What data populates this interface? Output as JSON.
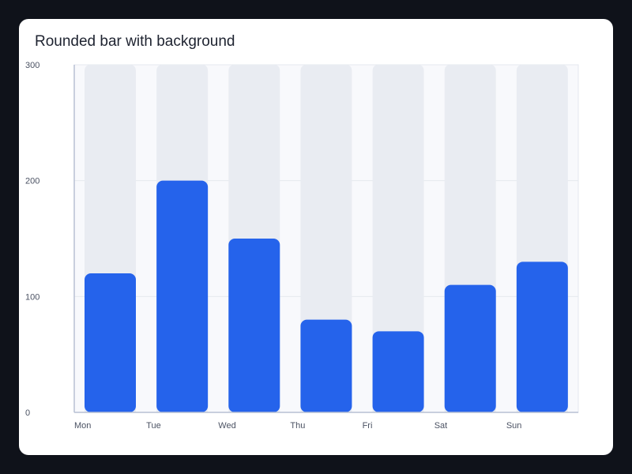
{
  "card": {
    "title": "Rounded bar with background"
  },
  "chart_data": {
    "type": "bar",
    "title": "Rounded bar with background",
    "categories": [
      "Mon",
      "Tue",
      "Wed",
      "Thu",
      "Fri",
      "Sat",
      "Sun"
    ],
    "series": [
      {
        "values": [
          120,
          200,
          150,
          80,
          70,
          110,
          130
        ]
      }
    ],
    "background_values": [
      300,
      300,
      300,
      300,
      300,
      300,
      300
    ],
    "ylim": [
      0,
      300
    ],
    "yticks": [
      0,
      100,
      200,
      300
    ],
    "xlabel": "",
    "ylabel": "",
    "grid": true,
    "legend": "none",
    "colors": {
      "bar": "#2563eb",
      "bar_background": "#e9ecf2",
      "plot_background": "#f8f9fc",
      "axis": "#b7c0d3",
      "grid": "#e6e9ef"
    }
  }
}
